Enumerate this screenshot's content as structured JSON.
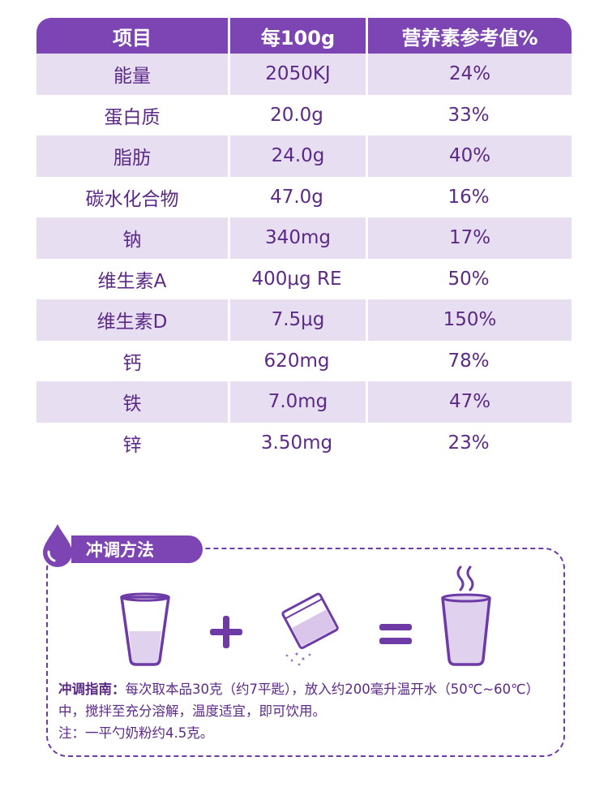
{
  "table": {
    "headers": [
      "项目",
      "每100g",
      "营养素参考值%"
    ],
    "rows": [
      [
        "能量",
        "2050KJ",
        "24%"
      ],
      [
        "蛋白质",
        "20.0g",
        "33%"
      ],
      [
        "脂肪",
        "24.0g",
        "40%"
      ],
      [
        "碳水化合物",
        "47.0g",
        "16%"
      ],
      [
        "钠",
        "340mg",
        "17%"
      ],
      [
        "维生素A",
        "400μg  RE",
        "50%"
      ],
      [
        "维生素D",
        "7.5μg",
        "150%"
      ],
      [
        "钙",
        "620mg",
        "78%"
      ],
      [
        "铁",
        "7.0mg",
        "47%"
      ],
      [
        "锌",
        "3.50mg",
        "23%"
      ]
    ]
  },
  "method": {
    "title": "冲调方法",
    "guide_label": "冲调指南：",
    "guide_text": "每次取本品30克（约7平匙），放入约200毫升温开水（50℃~60℃）中，搅拌至充分溶解，温度适宜，即可饮用。",
    "note": "注：一平勺奶粉约4.5克。"
  },
  "colors": {
    "header": "#7c45b3",
    "shade": "#e8def1",
    "text": "#5b2a86"
  },
  "icons": [
    "water-drop-icon",
    "glass-icon",
    "plus-icon",
    "powder-sachet-icon",
    "equals-icon",
    "hot-drink-icon"
  ]
}
